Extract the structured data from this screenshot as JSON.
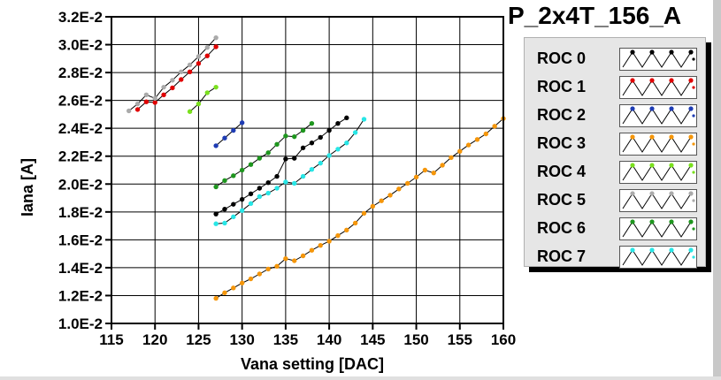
{
  "chart_data": {
    "type": "line",
    "title": "P_2x4T_156_A",
    "xlabel": "Vana setting [DAC]",
    "ylabel": "Iana [A]",
    "xlim": [
      115,
      160
    ],
    "ylim": [
      0.01,
      0.032
    ],
    "x_ticks": [
      115,
      120,
      125,
      130,
      135,
      140,
      145,
      150,
      155,
      160
    ],
    "x_tick_labels": [
      "115",
      "120",
      "125",
      "130",
      "135",
      "140",
      "145",
      "150",
      "155",
      "160"
    ],
    "y_ticks": [
      0.01,
      0.012,
      0.014,
      0.016,
      0.018,
      0.02,
      0.022,
      0.024,
      0.026,
      0.028,
      0.03,
      0.032
    ],
    "y_tick_labels": [
      "1.0E-2",
      "1.2E-2",
      "1.4E-2",
      "1.6E-2",
      "1.8E-2",
      "2.0E-2",
      "2.2E-2",
      "2.4E-2",
      "2.6E-2",
      "2.8E-2",
      "3.0E-2",
      "3.2E-2"
    ],
    "grid": true,
    "legend_position": "right",
    "series": [
      {
        "name": "ROC 0",
        "color": "#000000",
        "x": [
          127,
          128,
          129,
          130,
          131,
          132,
          133,
          134,
          135,
          136,
          137,
          138,
          139,
          140,
          141,
          142
        ],
        "y": [
          0.01785,
          0.0182,
          0.01855,
          0.0189,
          0.0193,
          0.0197,
          0.0201,
          0.02055,
          0.0218,
          0.02185,
          0.0226,
          0.02295,
          0.02335,
          0.02385,
          0.02435,
          0.02475
        ]
      },
      {
        "name": "ROC 1",
        "color": "#e00000",
        "x": [
          118,
          119,
          120,
          121,
          122,
          123,
          124,
          125,
          126,
          127
        ],
        "y": [
          0.02535,
          0.0259,
          0.02585,
          0.0264,
          0.0269,
          0.0275,
          0.02805,
          0.02865,
          0.0292,
          0.02985
        ]
      },
      {
        "name": "ROC 2",
        "color": "#1e3cb4",
        "x": [
          127,
          128,
          129,
          130
        ],
        "y": [
          0.02275,
          0.0233,
          0.02385,
          0.0244
        ]
      },
      {
        "name": "ROC 3",
        "color": "#f5960a",
        "x": [
          127,
          128,
          129,
          130,
          131,
          132,
          133,
          134,
          135,
          136,
          137,
          138,
          139,
          140,
          141,
          142,
          143,
          144,
          145,
          146,
          147,
          148,
          149,
          150,
          151,
          152,
          153,
          154,
          155,
          156,
          157,
          158,
          159,
          160
        ],
        "y": [
          0.0118,
          0.0122,
          0.01255,
          0.0129,
          0.0132,
          0.01355,
          0.0139,
          0.0141,
          0.01465,
          0.0145,
          0.01485,
          0.01525,
          0.0156,
          0.0159,
          0.0163,
          0.0167,
          0.0172,
          0.0179,
          0.0184,
          0.0188,
          0.0192,
          0.01965,
          0.02005,
          0.0205,
          0.021,
          0.0208,
          0.02135,
          0.0219,
          0.02235,
          0.0228,
          0.0232,
          0.0236,
          0.02415,
          0.0247
        ]
      },
      {
        "name": "ROC 4",
        "color": "#7ae01e",
        "x": [
          124,
          125,
          126,
          127
        ],
        "y": [
          0.0252,
          0.02575,
          0.02655,
          0.02695
        ]
      },
      {
        "name": "ROC 5",
        "color": "#aaaaaa",
        "x": [
          117,
          118,
          119,
          120,
          121,
          122,
          123,
          124,
          125,
          126,
          127
        ],
        "y": [
          0.02525,
          0.02575,
          0.0264,
          0.02615,
          0.02695,
          0.02745,
          0.02805,
          0.02855,
          0.02915,
          0.0298,
          0.0305
        ]
      },
      {
        "name": "ROC 6",
        "color": "#1e961e",
        "x": [
          127,
          128,
          129,
          130,
          131,
          132,
          133,
          134,
          135,
          136,
          137,
          138
        ],
        "y": [
          0.0198,
          0.02025,
          0.0206,
          0.021,
          0.0214,
          0.02185,
          0.02225,
          0.02285,
          0.02345,
          0.0234,
          0.02385,
          0.02435
        ]
      },
      {
        "name": "ROC 7",
        "color": "#28e6e6",
        "x": [
          127,
          128,
          129,
          130,
          131,
          132,
          133,
          134,
          135,
          136,
          137,
          138,
          139,
          140,
          141,
          142,
          143,
          144
        ],
        "y": [
          0.01715,
          0.0172,
          0.01765,
          0.0181,
          0.0186,
          0.0191,
          0.01935,
          0.0197,
          0.02015,
          0.02005,
          0.02055,
          0.02105,
          0.0215,
          0.02205,
          0.0225,
          0.02295,
          0.0237,
          0.02465
        ]
      }
    ]
  }
}
